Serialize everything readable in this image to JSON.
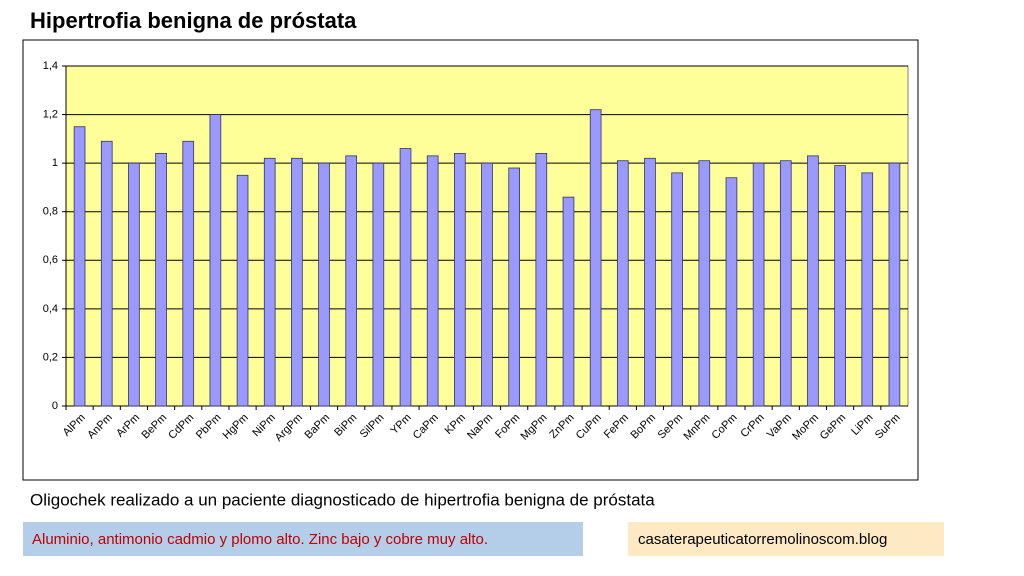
{
  "chart_data": {
    "type": "bar",
    "title": "Hipertrofia benigna de próstata",
    "categories": [
      "AlPm",
      "AnPm",
      "ArPm",
      "BePm",
      "CdPm",
      "PbPm",
      "HgPm",
      "NiPm",
      "ArgPm",
      "BaPm",
      "BiPm",
      "SilPm",
      "YPm",
      "CaPm",
      "KPm",
      "NaPm",
      "FoPm",
      "MgPm",
      "ZnPm",
      "CuPm",
      "FePm",
      "BoPm",
      "SePm",
      "MnPm",
      "CoPm",
      "CrPm",
      "VaPm",
      "MoPm",
      "GePm",
      "LiPm",
      "SuPm"
    ],
    "values": [
      1.15,
      1.09,
      1.0,
      1.04,
      1.09,
      1.2,
      0.95,
      1.02,
      1.02,
      1.0,
      1.03,
      1.0,
      1.06,
      1.03,
      1.04,
      1.0,
      0.98,
      1.04,
      0.86,
      1.22,
      1.01,
      1.02,
      0.96,
      1.01,
      0.94,
      1.0,
      1.01,
      1.03,
      0.99,
      0.96,
      1.0
    ],
    "color": "#9999ff",
    "plot_background": "#ffff99",
    "ylim": [
      0,
      1.4
    ],
    "yticks": [
      0,
      {
        "value": 0.2,
        "label": "0,2"
      },
      {
        "value": 0.4,
        "label": "0,4"
      },
      {
        "value": 0.6,
        "label": "0,6"
      },
      {
        "value": 0.8,
        "label": "0,8"
      },
      1,
      {
        "value": 1.2,
        "label": "1,2"
      },
      {
        "value": 1.4,
        "label": "1,4"
      }
    ],
    "grid": true
  },
  "caption": "Oligochek realizado a un paciente diagnosticado de hipertrofia benigna de próstata",
  "highlight": "Aluminio, antimonio cadmio y plomo alto. Zinc bajo y cobre muy alto.",
  "website": "casaterapeuticatorremolinoscom.blog"
}
